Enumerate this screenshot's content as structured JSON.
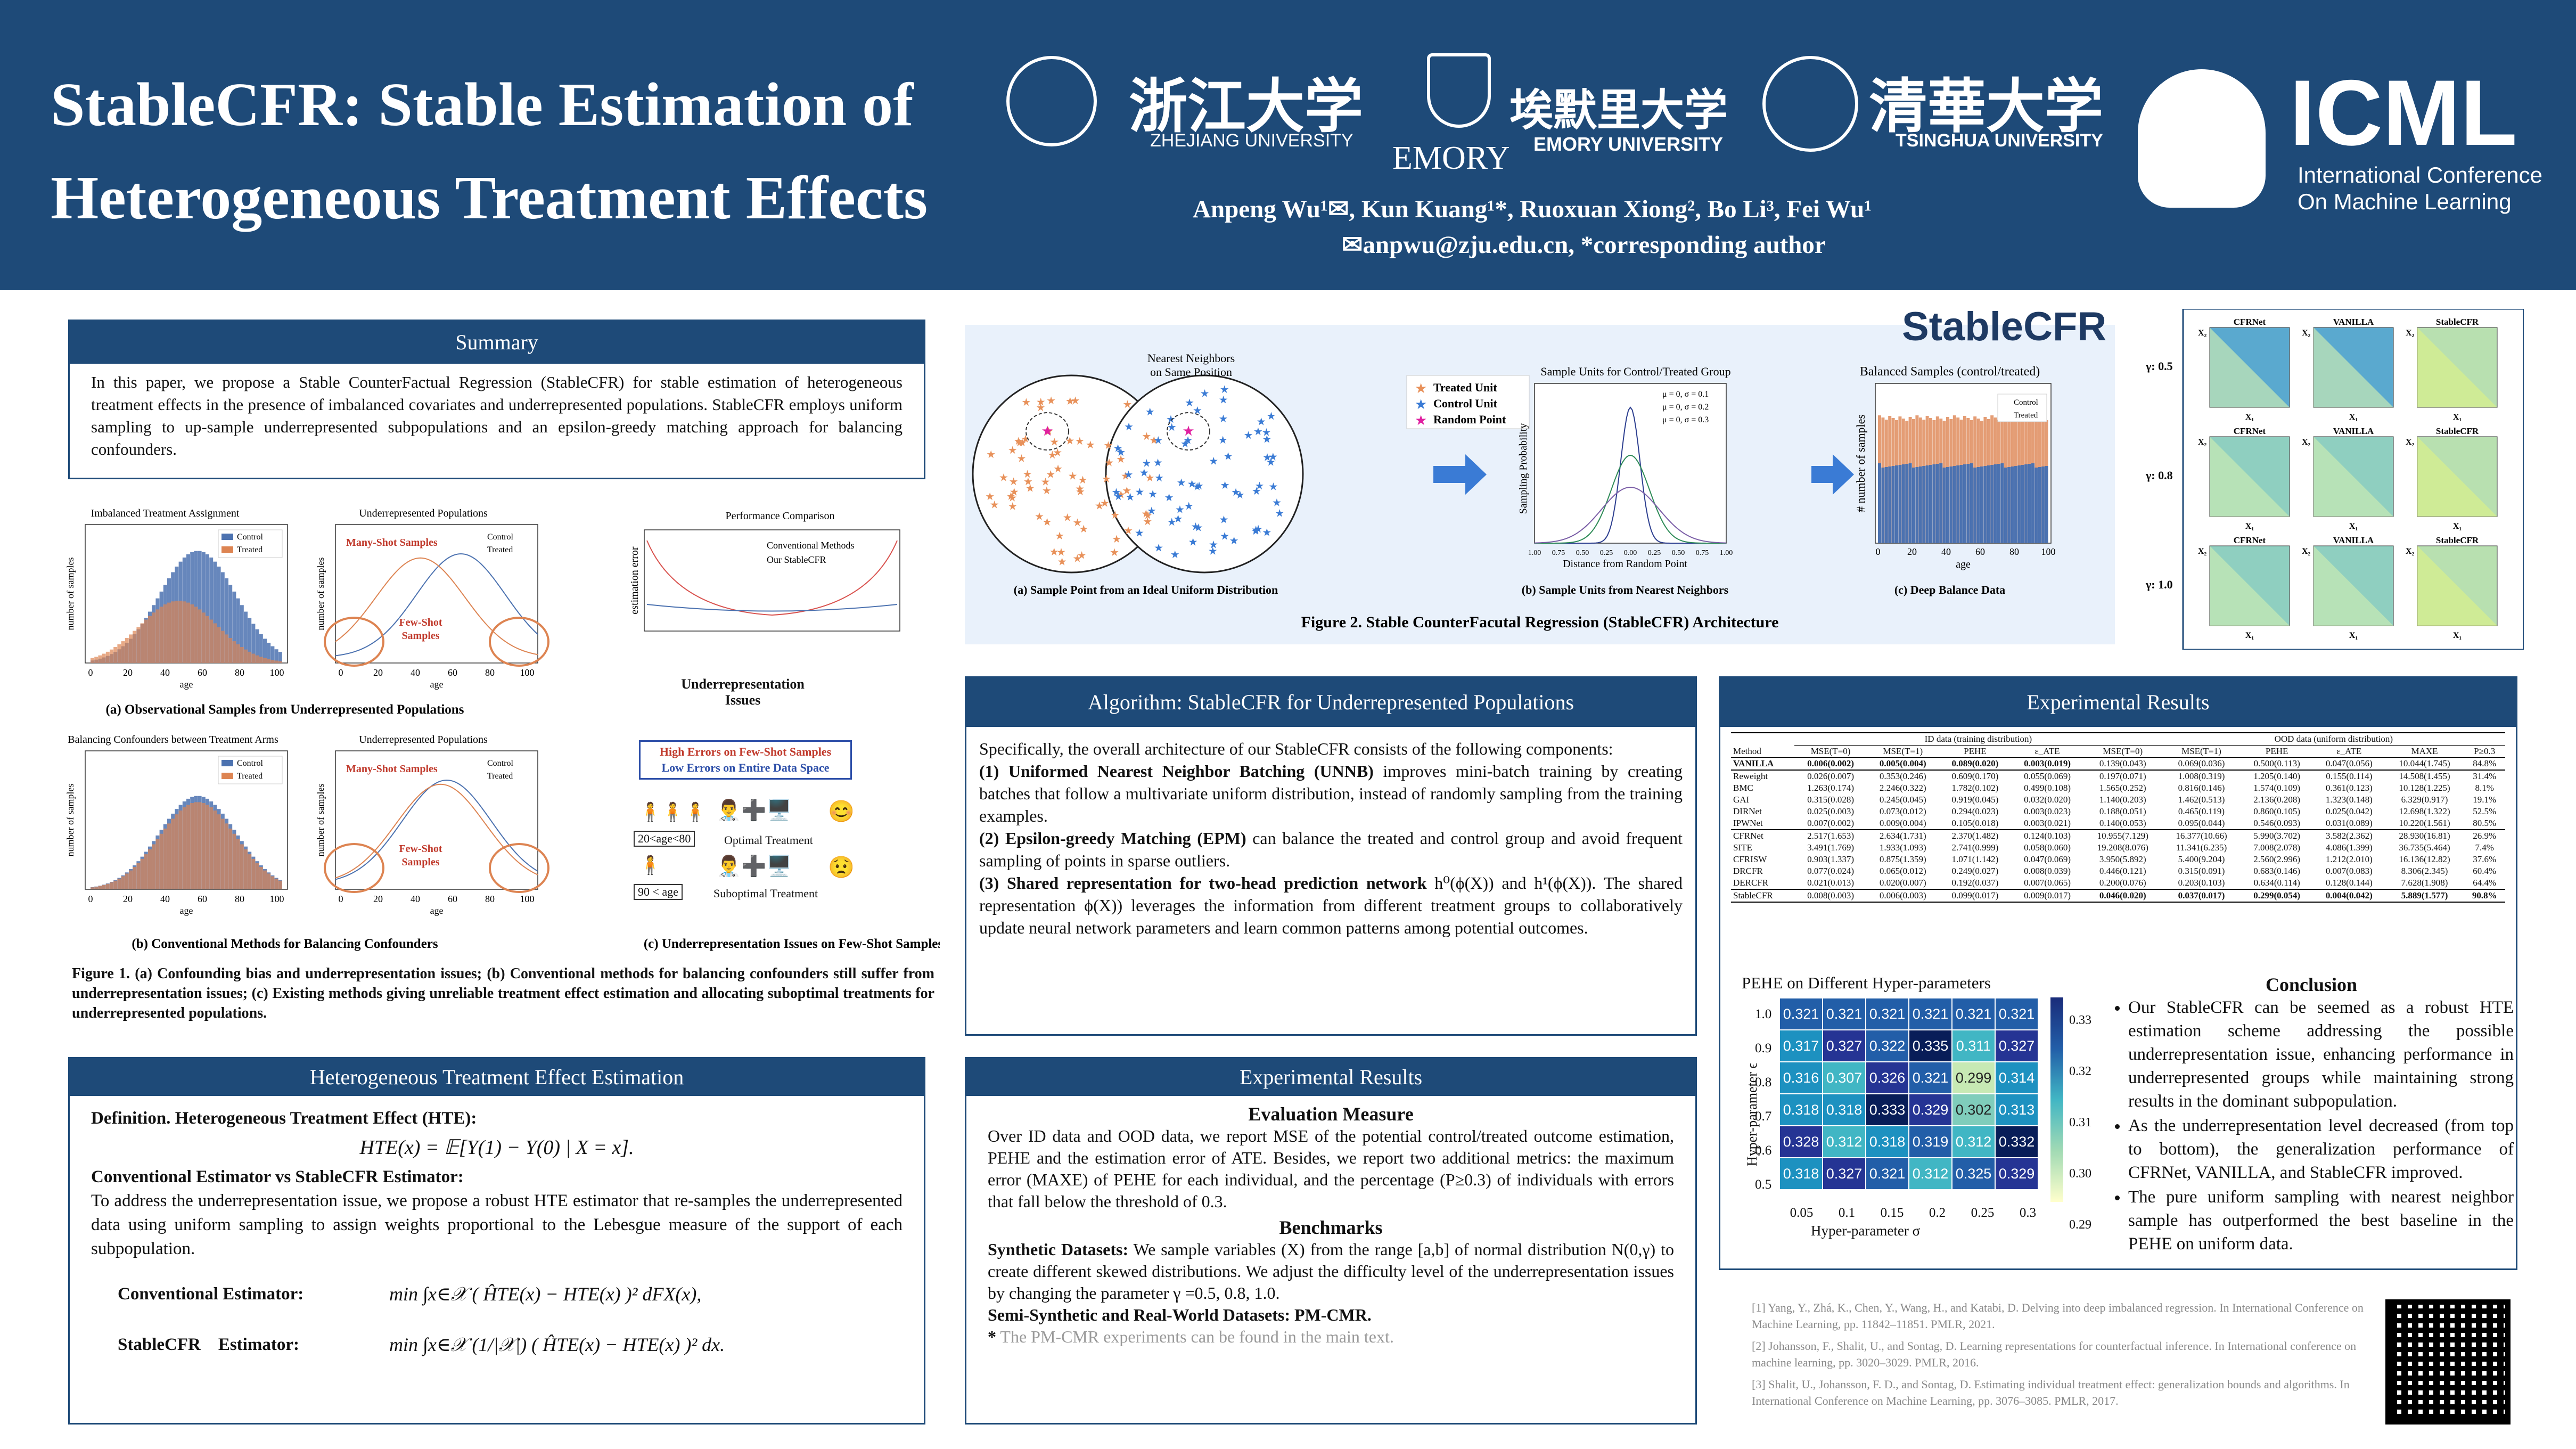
{
  "header": {
    "title_line1": "StableCFR: Stable Estimation of",
    "title_line2": "Heterogeneous Treatment Effects",
    "authors": "Anpeng Wu¹✉,  Kun Kuang¹*,   Ruoxuan Xiong², Bo Li³,   Fei Wu¹",
    "contact": "✉anpwu@zju.edu.cn, *corresponding author",
    "logos": {
      "zju_cn": "浙江大学",
      "zju_en": "ZHEJIANG UNIVERSITY",
      "emory_word": "EMORY",
      "emory_cn": "埃默里大学",
      "emory_en": "EMORY UNIVERSITY",
      "thu_cn": "清華大学",
      "thu_en": "TSINGHUA UNIVERSITY",
      "icml": "ICML",
      "icml_sub1": "International Conference",
      "icml_sub2": "On Machine Learning"
    }
  },
  "summary": {
    "heading": "Summary",
    "text": "In this paper, we propose a Stable CounterFactual Regression (StableCFR) for stable estimation of heterogeneous treatment effects in the presence of imbalanced covariates and underrepresented populations. StableCFR employs uniform sampling to up-sample underrepresented subpopulations and an epsilon-greedy matching approach for balancing confounders."
  },
  "fig1": {
    "a_title": "Imbalanced Treatment Assignment",
    "a2_title": "Underrepresented Populations",
    "c_title": "Performance Comparison",
    "b_title": "Balancing Confounders between Treatment Arms",
    "b2_title": "Underrepresented Populations",
    "legend_control": "Control",
    "legend_treated": "Treated",
    "ylabel": "number of samples",
    "xlabel": "age",
    "ticks": [
      "0",
      "20",
      "40",
      "60",
      "80",
      "100"
    ],
    "many_shot": "Many-Shot Samples",
    "few_shot1": "Few-Shot",
    "few_shot2": "Samples",
    "conv": "Conventional Methods",
    "ours": "Our StableCFR",
    "est_err": "estimation error",
    "under_issue1": "Underrepresentation",
    "under_issue2": "Issues",
    "high_err": "High Errors on Few-Shot Samples",
    "low_err": "Low Errors on Entire Data Space",
    "age_range1": "20<age<80",
    "age_range2": "90 < age",
    "optimal": "Optimal Treatment",
    "suboptimal": "Suboptimal Treatment",
    "cap_a": "(a) Observational Samples from Underrepresented Populations",
    "cap_b": "(b) Conventional Methods for Balancing Confounders",
    "cap_c": "(c) Underrepresentation Issues on Few-Shot Samples",
    "caption": "Figure 1. (a) Confounding bias and underrepresentation issues; (b) Conventional methods for balancing confounders still suffer from underrepresentation issues; (c) Existing methods giving unreliable treatment effect estimation and allocating suboptimal treatments for underrepresented populations."
  },
  "hte": {
    "heading": "Heterogeneous Treatment Effect Estimation",
    "def_title": "Definition. Heterogeneous Treatment Effect (HTE):",
    "def_formula": "HTE(x) = 𝔼[Y(1) − Y(0) | X = x].",
    "conv_title": "Conventional Estimator vs StableCFR Estimator:",
    "conv_text": "To address the underrepresentation issue, we propose a robust HTE estimator that re-samples the underrepresented data using uniform sampling to assign weights proportional to the Lebesgue measure of the support of each subpopulation.",
    "conv_label": "Conventional Estimator:",
    "conv_formula": "min ∫x∈𝒳 ( ĤTE(x) − HTE(x) )² dFX(x),",
    "stable_label": "StableCFR    Estimator:",
    "stable_formula": "min ∫x∈𝒳 (1/|𝒳|) ( ĤTE(x) − HTE(x) )² dx."
  },
  "fig2": {
    "brand": "StableCFR",
    "nn_label1": "Nearest Neighbors",
    "nn_label2": "on Same Position",
    "legend": [
      "Treated Unit",
      "Control Unit",
      "Random Point"
    ],
    "mid_title": "Sample Units for Control/Treated Group",
    "mid_legend": [
      "μ = 0, σ = 0.1",
      "μ = 0, σ = 0.2",
      "μ = 0, σ = 0.3"
    ],
    "mid_ylabel": "Sampling Probability",
    "mid_xlabel": "Distance from Random Point",
    "mid_ticks": [
      "1.00",
      "0.75",
      "0.50",
      "0.25",
      "0.00",
      "0.25",
      "0.50",
      "0.75",
      "1.00"
    ],
    "right_title": "Balanced Samples (control/treated)",
    "right_ylabel": "# number of samples",
    "right_xlabel": "age",
    "right_ticks": [
      "0",
      "20",
      "40",
      "60",
      "80",
      "100"
    ],
    "cap_a": "(a) Sample Point from an Ideal Uniform Distribution",
    "cap_b": "(b) Sample Units from Nearest Neighbors",
    "cap_c": "(c) Deep Balance Data",
    "caption": "Figure 2. Stable CounterFacutal Regression (StableCFR) Architecture"
  },
  "heatgrid": {
    "cols": [
      "CFRNet",
      "VANILLA",
      "StableCFR"
    ],
    "rows": [
      "γ: 0.5",
      "γ: 0.8",
      "γ: 1.0"
    ],
    "x1": "X₁",
    "x2": "X₂"
  },
  "algorithm": {
    "heading": "Algorithm: StableCFR for Underrepresented Populations",
    "p1": "Specifically, the overall architecture of our StableCFR consists of the following components:",
    "i1_b": "(1) Uniformed Nearest Neighbor Batching (UNNB)",
    "i1_t": " improves mini-batch training by creating batches that follow a multivariate uniform distribution, instead of randomly sampling from the training examples.",
    "i2_b": "(2) Epsilon-greedy Matching (EPM)",
    "i2_t": " can balance the treated and control group and avoid frequent sampling of points in sparse outliers.",
    "i3_b": "(3) Shared representation for two-head prediction network",
    "i3_t": " h⁰(ϕ(X)) and h¹(ϕ(X)). The shared representation ϕ(X)) leverages the information from different treatment groups to collaboratively update neural network parameters and learn common patterns among potential outcomes."
  },
  "exp_mid": {
    "heading": "Experimental Results",
    "eval_title": "Evaluation Measure",
    "eval_text": "Over ID data and OOD data, we report MSE of the potential control/treated outcome estimation, PEHE and the estimation error of ATE. Besides, we report two additional metrics: the maximum error (MAXE) of PEHE for each individual, and the percentage (P≥0.3) of individuals with errors that fall below the threshold of 0.3.",
    "bench_title": "Benchmarks",
    "syn_b": "Synthetic Datasets:",
    "syn_t": " We sample variables (X) from the range [a,b] of normal distribution N(0,γ) to create different skewed distributions. We adjust the difficulty level of the underrepresentation issues by changing the parameter γ =0.5, 0.8, 1.0.",
    "semi_b": "Semi-Synthetic and Real-World Datasets: PM-CMR.",
    "note_star": "*",
    "note": " The PM-CMR experiments can be found in the main text."
  },
  "exp_right": {
    "heading": "Experimental Results",
    "table": {
      "group_id": "ID data (training distribution)",
      "group_ood": "OOD data (uniform distribution)",
      "headers": [
        "Method",
        "MSE(T=0)",
        "MSE(T=1)",
        "PEHE",
        "ε_ATE",
        "MSE(T=0)",
        "MSE(T=1)",
        "PEHE",
        "ε_ATE",
        "MAXE",
        "P≥0.3"
      ],
      "rows": [
        [
          "VANILLA",
          "0.006(0.002)",
          "0.005(0.004)",
          "0.089(0.020)",
          "0.003(0.019)",
          "0.139(0.043)",
          "0.069(0.036)",
          "0.500(0.113)",
          "0.047(0.056)",
          "10.044(1.745)",
          "84.8%"
        ],
        [
          "Reweight",
          "0.026(0.007)",
          "0.353(0.246)",
          "0.609(0.170)",
          "0.055(0.069)",
          "0.197(0.071)",
          "1.008(0.319)",
          "1.205(0.140)",
          "0.155(0.114)",
          "14.508(1.455)",
          "31.4%"
        ],
        [
          "BMC",
          "1.263(0.174)",
          "2.246(0.322)",
          "1.782(0.102)",
          "0.499(0.108)",
          "1.565(0.252)",
          "0.816(0.146)",
          "1.574(0.109)",
          "0.361(0.123)",
          "10.128(1.225)",
          "8.1%"
        ],
        [
          "GAI",
          "0.315(0.028)",
          "0.245(0.045)",
          "0.919(0.045)",
          "0.032(0.020)",
          "1.140(0.203)",
          "1.462(0.513)",
          "2.136(0.208)",
          "1.323(0.148)",
          "6.329(0.917)",
          "19.1%"
        ],
        [
          "DIRNet",
          "0.025(0.003)",
          "0.073(0.012)",
          "0.294(0.023)",
          "0.003(0.023)",
          "0.188(0.051)",
          "0.465(0.119)",
          "0.860(0.105)",
          "0.025(0.042)",
          "12.698(1.322)",
          "52.5%"
        ],
        [
          "IPWNet",
          "0.007(0.002)",
          "0.009(0.004)",
          "0.105(0.018)",
          "0.003(0.021)",
          "0.140(0.053)",
          "0.095(0.044)",
          "0.546(0.093)",
          "0.031(0.089)",
          "10.220(1.561)",
          "80.5%"
        ],
        [
          "CFRNet",
          "2.517(1.653)",
          "2.634(1.731)",
          "2.370(1.482)",
          "0.124(0.103)",
          "10.955(7.129)",
          "16.377(10.66)",
          "5.990(3.702)",
          "3.582(2.362)",
          "28.930(16.81)",
          "26.9%"
        ],
        [
          "SITE",
          "3.491(1.769)",
          "1.933(1.093)",
          "2.741(0.999)",
          "0.058(0.060)",
          "19.208(8.076)",
          "11.341(6.235)",
          "7.008(2.078)",
          "4.086(1.399)",
          "36.735(5.464)",
          "7.4%"
        ],
        [
          "CFRISW",
          "0.903(1.337)",
          "0.875(1.359)",
          "1.071(1.142)",
          "0.047(0.069)",
          "3.950(5.892)",
          "5.400(9.204)",
          "2.560(2.996)",
          "1.212(2.010)",
          "16.136(12.82)",
          "37.6%"
        ],
        [
          "DRCFR",
          "0.077(0.024)",
          "0.065(0.012)",
          "0.249(0.027)",
          "0.008(0.039)",
          "0.446(0.121)",
          "0.315(0.091)",
          "0.683(0.146)",
          "0.007(0.083)",
          "8.306(2.345)",
          "60.4%"
        ],
        [
          "DERCFR",
          "0.021(0.013)",
          "0.020(0.007)",
          "0.192(0.037)",
          "0.007(0.065)",
          "0.200(0.076)",
          "0.203(0.103)",
          "0.634(0.114)",
          "0.128(0.144)",
          "7.628(1.908)",
          "64.4%"
        ],
        [
          "StableCFR",
          "0.008(0.003)",
          "0.006(0.003)",
          "0.099(0.017)",
          "0.009(0.017)",
          "0.046(0.020)",
          "0.037(0.017)",
          "0.299(0.054)",
          "0.004(0.042)",
          "5.889(1.577)",
          "90.8%"
        ]
      ]
    },
    "heatmap_title": "PEHE on Different Hyper-parameters",
    "heatmap_ylabel": "Hyper-parameter ϵ",
    "heatmap_xlabel": "Hyper-parameter σ",
    "heatmap_yticks": [
      "1.0",
      "0.9",
      "0.8",
      "0.7",
      "0.6",
      "0.5"
    ],
    "heatmap_xticks": [
      "0.05",
      "0.1",
      "0.15",
      "0.2",
      "0.25",
      "0.3"
    ],
    "heatmap_values": [
      [
        "0.321",
        "0.321",
        "0.321",
        "0.321",
        "0.321",
        "0.321"
      ],
      [
        "0.317",
        "0.327",
        "0.322",
        "0.335",
        "0.311",
        "0.327"
      ],
      [
        "0.316",
        "0.307",
        "0.326",
        "0.321",
        "0.299",
        "0.314"
      ],
      [
        "0.318",
        "0.318",
        "0.333",
        "0.329",
        "0.302",
        "0.313"
      ],
      [
        "0.328",
        "0.312",
        "0.318",
        "0.319",
        "0.312",
        "0.332"
      ],
      [
        "0.318",
        "0.327",
        "0.321",
        "0.312",
        "0.325",
        "0.329"
      ]
    ],
    "cbar_ticks": [
      "0.33",
      "0.32",
      "0.31",
      "0.30",
      "0.29"
    ],
    "conclusion_title": "Conclusion",
    "conclusion": [
      "Our StableCFR can be seemed as a robust HTE estimation scheme addressing the possible underrepresentation issue, enhancing performance in underrepresented groups while maintaining strong results in the dominant subpopulation.",
      "As the underrepresentation level decreased (from top to bottom), the generalization performance of CFRNet, VANILLA, and StableCFR improved.",
      "The pure uniform sampling with nearest neighbor sample has outperformed the best baseline in the PEHE on uniform data."
    ],
    "refs": [
      "[1] Yang, Y., Zhá, K., Chen, Y., Wang, H., and Katabi, D. Delving into deep imbalanced regression. In International Conference on Machine Learning, pp. 11842–11851. PMLR, 2021.",
      "[2] Johansson, F., Shalit, U., and Sontag, D. Learning representations for counterfactual inference. In International conference on machine learning, pp. 3020–3029. PMLR, 2016.",
      "[3] Shalit, U., Johansson, F. D., and Sontag, D. Estimating individual treatment effect: generalization bounds and algorithms. In International Conference on Machine Learning, pp. 3076–3085. PMLR, 2017."
    ]
  },
  "colors": {
    "navy": "#1e4a78",
    "control": "#4c72b0",
    "treated": "#dd8452"
  }
}
